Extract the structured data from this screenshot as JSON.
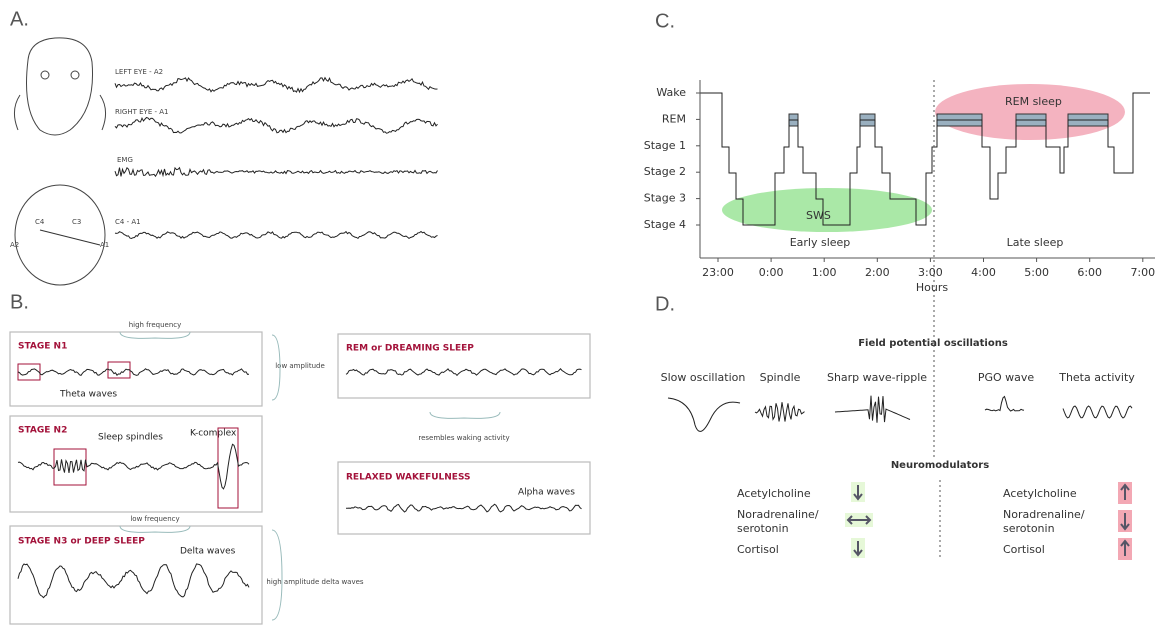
{
  "panel_a": {
    "label": "A.",
    "traces": [
      "LEFT EYE - A2",
      "RIGHT EYE - A1",
      "EMG",
      "C4 - A1"
    ],
    "electrodes": [
      "C4",
      "C3",
      "A2",
      "A1"
    ]
  },
  "panel_b": {
    "label": "B.",
    "n1": {
      "title": "STAGE N1",
      "note": "Theta waves",
      "top": "high frequency",
      "side": "low amplitude"
    },
    "n2": {
      "title": "STAGE N2",
      "notes": [
        "Sleep spindles",
        "K-complex"
      ]
    },
    "n3": {
      "title": "STAGE N3 or DEEP SLEEP",
      "note": "Delta waves",
      "top": "low frequency",
      "side": "high amplitude delta waves"
    },
    "rem": {
      "title": "REM or DREAMING SLEEP",
      "note": "resembles waking activity"
    },
    "wake": {
      "title": "RELAXED WAKEFULNESS",
      "note": "Alpha waves"
    }
  },
  "panel_c": {
    "label": "C.",
    "stages": [
      "Wake",
      "REM",
      "Stage 1",
      "Stage 2",
      "Stage 3",
      "Stage 4"
    ],
    "times": [
      "23:00",
      "0:00",
      "1:00",
      "2:00",
      "3:00",
      "4:00",
      "5:00",
      "6:00",
      "7:00"
    ],
    "axis_title": "Hours",
    "regions": [
      "Early sleep",
      "Late sleep"
    ],
    "ovals": [
      "SWS",
      "REM sleep"
    ]
  },
  "panel_d": {
    "label": "D.",
    "oscillations_title": "Field potential oscillations",
    "oscillations": [
      "Slow oscillation",
      "Spindle",
      "Sharp wave-ripple",
      "PGO wave",
      "Theta activity"
    ],
    "modulators_title": "Neuromodulators",
    "modulators": [
      "Acetylcholine",
      "Noradrenaline/",
      "serotonin",
      "Cortisol"
    ]
  }
}
